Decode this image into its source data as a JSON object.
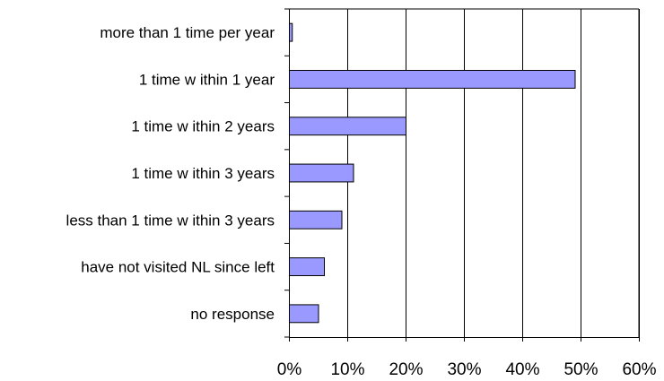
{
  "chart_data": {
    "type": "bar",
    "orientation": "horizontal",
    "title": "",
    "xlabel": "",
    "ylabel": "",
    "categories": [
      "more than 1 time per year",
      "1 time w ithin 1 year",
      "1 time w ithin 2 years",
      "1 time w ithin 3 years",
      "less than 1 time w ithin 3 years",
      "have not visited NL since left",
      "no response"
    ],
    "values": [
      0.5,
      49,
      20,
      11,
      9,
      6,
      5
    ],
    "xlim": [
      0,
      60
    ],
    "x_ticks": [
      "0%",
      "10%",
      "20%",
      "30%",
      "40%",
      "50%",
      "60%"
    ],
    "grid": "vertical",
    "legend": "none",
    "colors": {
      "bar_fill": "#9999ff",
      "bar_stroke": "#000000",
      "grid": "#000000"
    }
  }
}
